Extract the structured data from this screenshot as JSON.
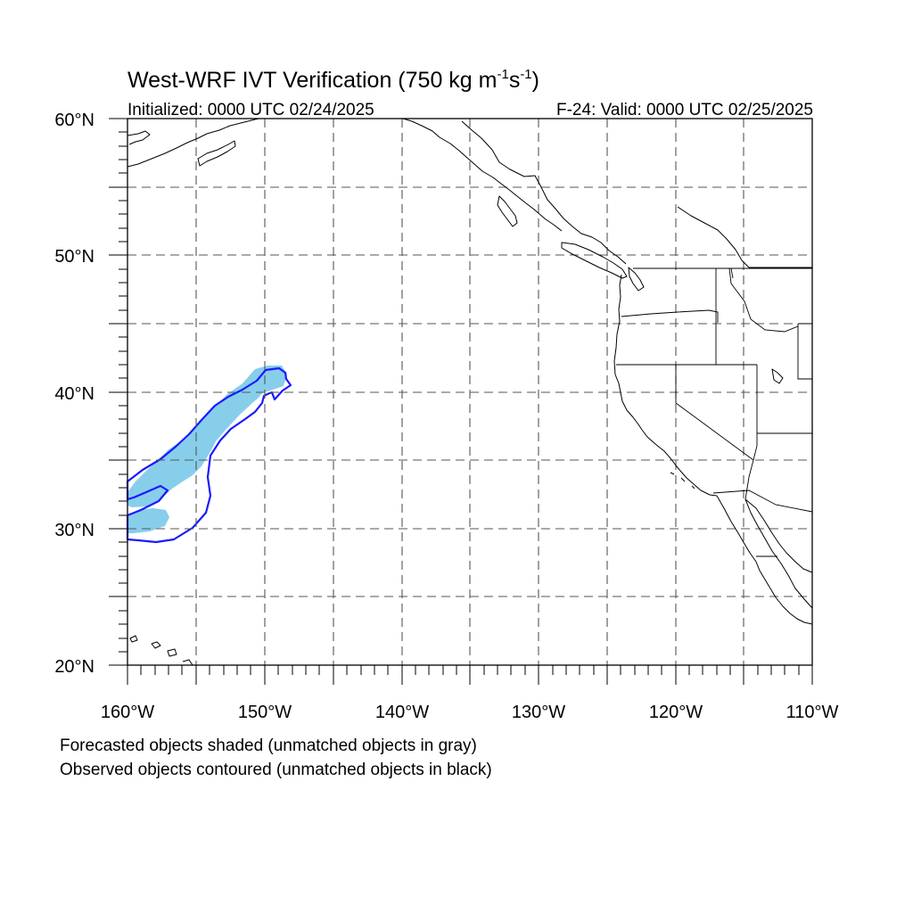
{
  "title": {
    "main": "West-WRF IVT Verification (750 kg m",
    "exp1": "-1",
    "mid": "s",
    "exp2": "-1",
    "close": ")"
  },
  "initialized": "Initialized: 0000 UTC 02/24/2025",
  "valid": "F-24: Valid: 0000 UTC 02/25/2025",
  "lat_labels": [
    "60°N",
    "50°N",
    "40°N",
    "30°N",
    "20°N"
  ],
  "lon_labels": [
    "160°W",
    "150°W",
    "140°W",
    "130°W",
    "120°W",
    "110°W"
  ],
  "notes": {
    "forecast": "Forecasted objects shaded (unmatched objects in gray)",
    "observed": "Observed objects contoured (unmatched objects in black)"
  },
  "map": {
    "lon_range": [
      -160,
      -110
    ],
    "lat_range": [
      20,
      60
    ],
    "grid_interval_deg": 5,
    "grid_style": "dashed",
    "projection": "cylindrical equidistant"
  },
  "colors": {
    "forecast_shade": "#87CEEB",
    "observed_contour": "#1a1aff",
    "coastline": "#000000",
    "grid": "#555555"
  },
  "objects": {
    "forecast_count": 2,
    "observed_count": 1
  }
}
